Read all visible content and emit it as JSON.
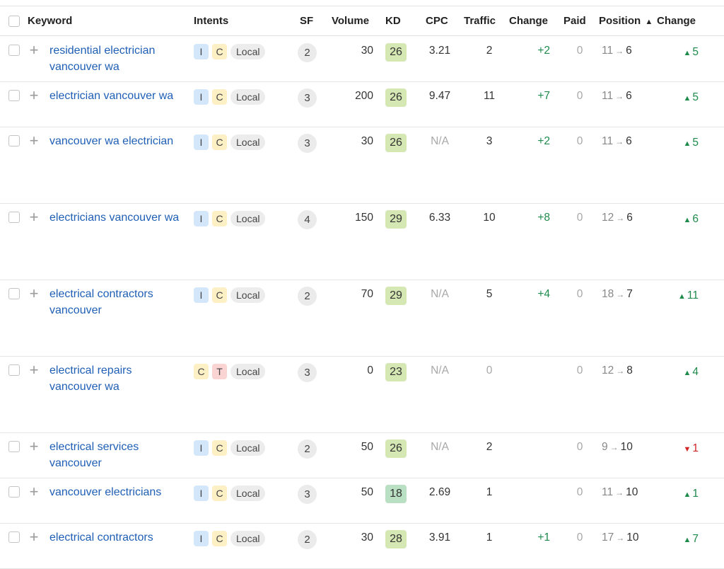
{
  "header": {
    "keyword": "Keyword",
    "intents": "Intents",
    "sf": "SF",
    "volume": "Volume",
    "kd": "KD",
    "cpc": "CPC",
    "traffic": "Traffic",
    "change": "Change",
    "paid": "Paid",
    "position": "Position",
    "position_sort_icon": "▲",
    "change2": "Change"
  },
  "colors": {
    "link": "#1f5fb5",
    "kd_easy": "#d5e7b3",
    "kd_very_easy": "#b9e0c2",
    "positive": "#1e8a4c",
    "negative": "#d02626"
  },
  "rows": [
    {
      "keyword": "residential electrician vancouver wa",
      "intents": [
        "I",
        "C",
        "Local"
      ],
      "sf": "2",
      "volume": "30",
      "kd": "26",
      "cpc": "3.21",
      "traffic": "2",
      "change": "+2",
      "paid": "0",
      "pos_from": "11",
      "pos_to": "6",
      "pos_change": "5",
      "pos_dir": "up"
    },
    {
      "keyword": "electrician vancouver wa",
      "intents": [
        "I",
        "C",
        "Local"
      ],
      "sf": "3",
      "volume": "200",
      "kd": "26",
      "cpc": "9.47",
      "traffic": "11",
      "change": "+7",
      "paid": "0",
      "pos_from": "11",
      "pos_to": "6",
      "pos_change": "5",
      "pos_dir": "up"
    },
    {
      "keyword": "vancouver wa electrician",
      "intents": [
        "I",
        "C",
        "Local"
      ],
      "sf": "3",
      "volume": "30",
      "kd": "26",
      "cpc": "N/A",
      "traffic": "3",
      "change": "+2",
      "paid": "0",
      "pos_from": "11",
      "pos_to": "6",
      "pos_change": "5",
      "pos_dir": "up"
    },
    {
      "keyword": "electricians vancouver wa",
      "intents": [
        "I",
        "C",
        "Local"
      ],
      "sf": "4",
      "volume": "150",
      "kd": "29",
      "cpc": "6.33",
      "traffic": "10",
      "change": "+8",
      "paid": "0",
      "pos_from": "12",
      "pos_to": "6",
      "pos_change": "6",
      "pos_dir": "up"
    },
    {
      "keyword": "electrical contractors vancouver",
      "intents": [
        "I",
        "C",
        "Local"
      ],
      "sf": "2",
      "volume": "70",
      "kd": "29",
      "cpc": "N/A",
      "traffic": "5",
      "change": "+4",
      "paid": "0",
      "pos_from": "18",
      "pos_to": "7",
      "pos_change": "11",
      "pos_dir": "up"
    },
    {
      "keyword": "electrical repairs vancouver wa",
      "intents": [
        "C",
        "T",
        "Local"
      ],
      "sf": "3",
      "volume": "0",
      "kd": "23",
      "cpc": "N/A",
      "traffic": "0",
      "change": "",
      "paid": "0",
      "pos_from": "12",
      "pos_to": "8",
      "pos_change": "4",
      "pos_dir": "up"
    },
    {
      "keyword": "electrical services vancouver",
      "intents": [
        "I",
        "C",
        "Local"
      ],
      "sf": "2",
      "volume": "50",
      "kd": "26",
      "cpc": "N/A",
      "traffic": "2",
      "change": "",
      "paid": "0",
      "pos_from": "9",
      "pos_to": "10",
      "pos_change": "1",
      "pos_dir": "down"
    },
    {
      "keyword": "vancouver electricians",
      "intents": [
        "I",
        "C",
        "Local"
      ],
      "sf": "3",
      "volume": "50",
      "kd": "18",
      "cpc": "2.69",
      "traffic": "1",
      "change": "",
      "paid": "0",
      "pos_from": "11",
      "pos_to": "10",
      "pos_change": "1",
      "pos_dir": "up"
    },
    {
      "keyword": "electrical contractors",
      "intents": [
        "I",
        "C",
        "Local"
      ],
      "sf": "2",
      "volume": "30",
      "kd": "28",
      "cpc": "3.91",
      "traffic": "1",
      "change": "+1",
      "paid": "0",
      "pos_from": "17",
      "pos_to": "10",
      "pos_change": "7",
      "pos_dir": "up"
    }
  ]
}
